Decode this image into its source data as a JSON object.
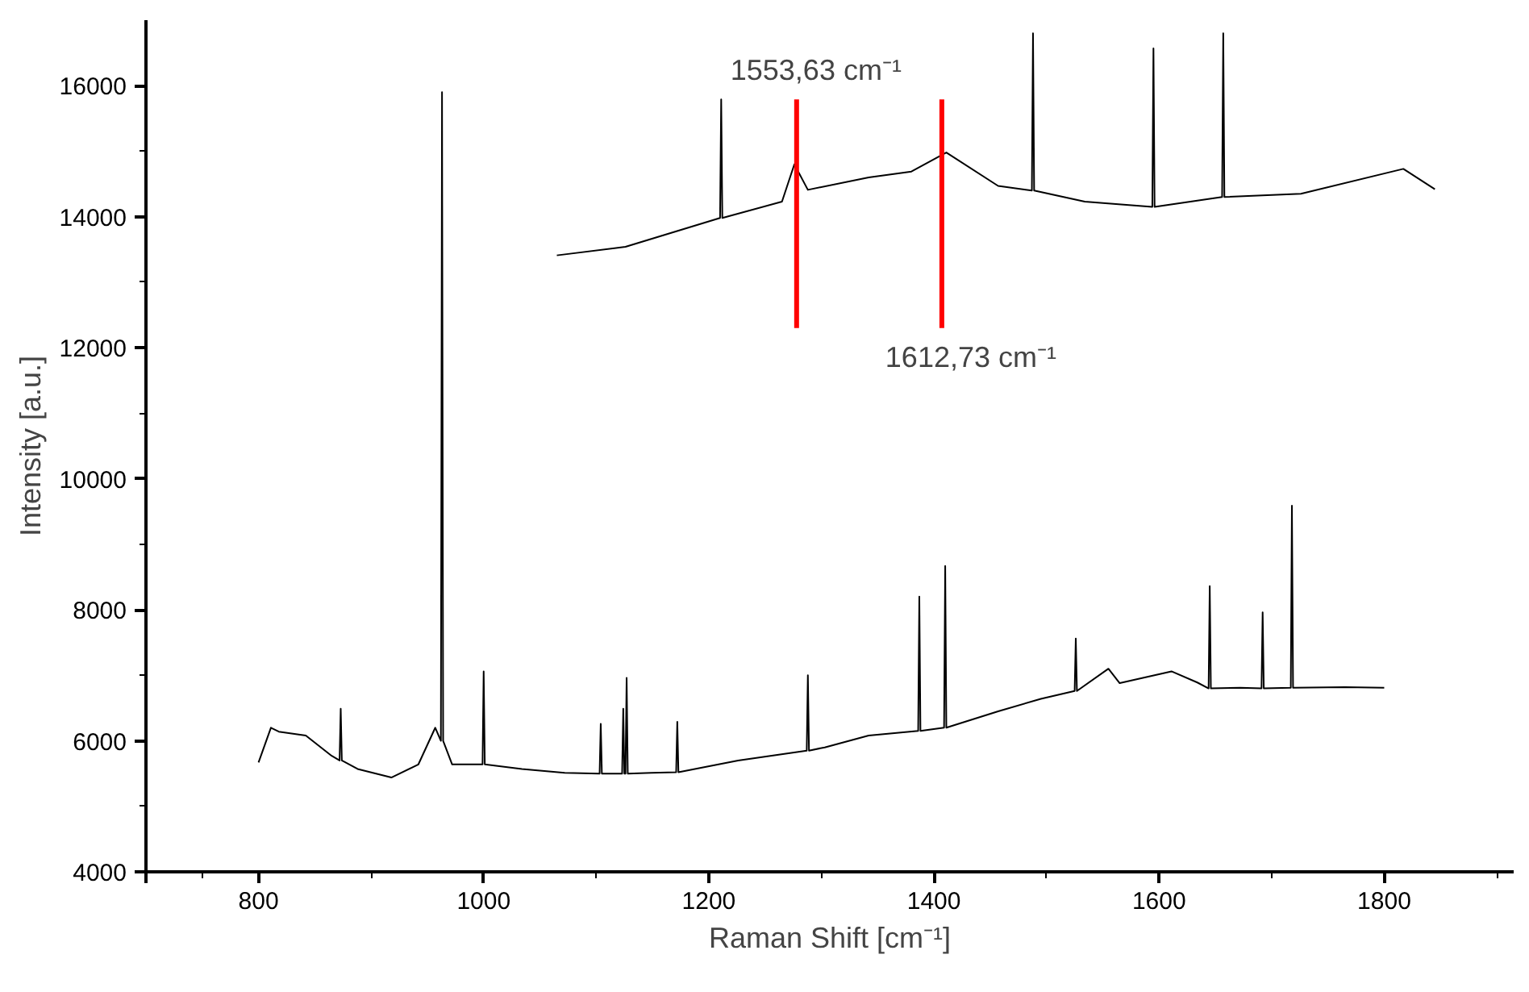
{
  "chart_data": {
    "type": "line",
    "xlabel": "Raman Shift [cm⁻¹]",
    "ylabel": "Intensity [a.u.]",
    "xlim": [
      700,
      1915
    ],
    "xticks": [
      {
        "value": 700,
        "label": null
      },
      800,
      1000,
      1200,
      1400,
      1600,
      1800
    ],
    "ylim": [
      4000,
      17000
    ],
    "yticks": [
      4000,
      6000,
      8000,
      10000,
      12000,
      14000,
      16000
    ],
    "grid": false,
    "marker": "none",
    "line_style": "solid",
    "series": [
      {
        "color": "#000000",
        "x": [
          800,
          811,
          818,
          842,
          865,
          872,
          873,
          874,
          888,
          918,
          942,
          957,
          962,
          963,
          964,
          972,
          995,
          999,
          1000,
          1001,
          1034,
          1072,
          1103,
          1104,
          1105,
          1123,
          1124,
          1125,
          1126,
          1127,
          1128,
          1149,
          1171,
          1172,
          1173,
          1226,
          1287,
          1288,
          1289,
          1303,
          1342,
          1386,
          1387,
          1388,
          1409,
          1410,
          1411,
          1457,
          1495,
          1525,
          1526,
          1527,
          1555,
          1565,
          1611,
          1634,
          1644,
          1645,
          1646,
          1672,
          1691,
          1692,
          1693,
          1717,
          1718,
          1719,
          1765,
          1800
        ],
        "values": [
          5670,
          6200,
          6140,
          6080,
          5770,
          5700,
          6490,
          5700,
          5570,
          5440,
          5640,
          6200,
          6000,
          15900,
          6000,
          5640,
          5640,
          5640,
          7060,
          5640,
          5570,
          5510,
          5500,
          6260,
          5500,
          5500,
          6490,
          5500,
          5500,
          6960,
          5500,
          5510,
          5520,
          6290,
          5520,
          5700,
          5850,
          7000,
          5850,
          5900,
          6080,
          6150,
          8200,
          6150,
          6200,
          8670,
          6200,
          6450,
          6640,
          6760,
          7560,
          6760,
          7100,
          6880,
          7060,
          6890,
          6800,
          8360,
          6800,
          6810,
          6800,
          7960,
          6800,
          6810,
          9590,
          6810,
          6820,
          6810
        ]
      },
      {
        "color": "#000000",
        "x": [
          1065,
          1126,
          1210,
          1211,
          1212,
          1265,
          1276,
          1288,
          1342,
          1380,
          1411,
          1457,
          1487,
          1488,
          1489,
          1534,
          1594,
          1595,
          1596,
          1656,
          1657,
          1658,
          1726,
          1817,
          1845
        ],
        "values": [
          13410,
          13540,
          13980,
          15790,
          13980,
          14230,
          14800,
          14410,
          14600,
          14690,
          14980,
          14470,
          14400,
          16800,
          14400,
          14230,
          14150,
          16570,
          14150,
          14300,
          16800,
          14300,
          14350,
          14730,
          14420
        ]
      },
      {
        "color": "#ff0000",
        "x": [
          1278,
          1278
        ],
        "values": [
          12300,
          15790
        ]
      },
      {
        "color": "#ff0000",
        "x": [
          1407,
          1407
        ],
        "values": [
          12300,
          15790
        ]
      }
    ],
    "annotations": [
      {
        "text": "1553,63 cm⁻¹",
        "x": 1278,
        "y": 15790
      },
      {
        "text": "1612,73 cm⁻¹",
        "x": 1407,
        "y": 12300
      }
    ]
  }
}
